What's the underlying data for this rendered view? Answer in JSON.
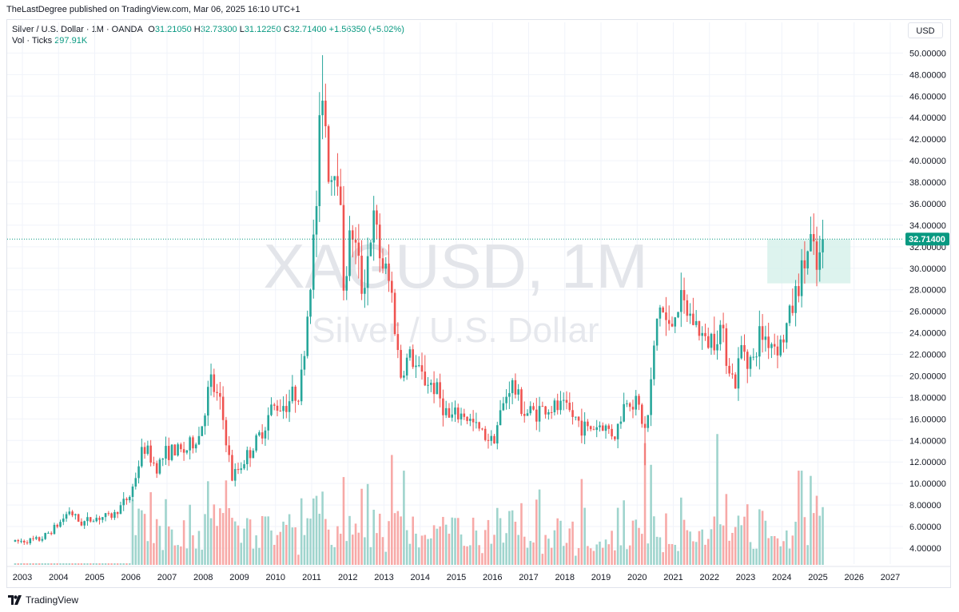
{
  "header": {
    "published": "TheLastDegree published on TradingView.com, Mar 06, 2025 16:10 UTC+1"
  },
  "legend": {
    "symbol": "Silver / U.S. Dollar · 1M · OANDA",
    "o_label": "O",
    "o_value": "31.21050",
    "h_label": "H",
    "h_value": "32.73300",
    "l_label": "L",
    "l_value": "31.12250",
    "c_label": "C",
    "c_value": "32.71400",
    "change": "+1.56350 (+5.02%)",
    "vol_label": "Vol · Ticks",
    "vol_value": "297.91K"
  },
  "currency_button": "USD",
  "watermark": {
    "symbol": "XAGUSD, 1M",
    "description": "Silver / U.S. Dollar"
  },
  "footer": {
    "brand": "TradingView"
  },
  "colors": {
    "up": "#26a69a",
    "down": "#ef5350",
    "vol_up": "#9fd4cd",
    "vol_down": "#f7a9a7",
    "price_line": "#089981",
    "highlight": "#d5f0ea"
  },
  "chart_data": {
    "type": "candlestick",
    "x_axis_labels": [
      "2003",
      "2004",
      "2005",
      "2006",
      "2007",
      "2008",
      "2009",
      "2010",
      "2011",
      "2012",
      "2013",
      "2014",
      "2015",
      "2016",
      "2017",
      "2018",
      "2019",
      "2020",
      "2021",
      "2022",
      "2023",
      "2024",
      "2025",
      "2026",
      "2027"
    ],
    "y_axis_labels": [
      "4.00000",
      "6.00000",
      "8.00000",
      "10.00000",
      "12.00000",
      "14.00000",
      "16.00000",
      "18.00000",
      "20.00000",
      "22.00000",
      "24.00000",
      "26.00000",
      "28.00000",
      "30.00000",
      "32.00000",
      "34.00000",
      "36.00000",
      "38.00000",
      "40.00000",
      "42.00000",
      "44.00000",
      "46.00000",
      "48.00000",
      "50.00000"
    ],
    "ylim": [
      2.0,
      51.5
    ],
    "last_price": 32.714,
    "last_price_label": "32.71400",
    "highlight_zone": {
      "x_start": 2023.6,
      "x_end": 2025.9,
      "y_low": 28.6,
      "y_high": 32.7
    },
    "price_anchors": [
      [
        2002.8,
        4.6
      ],
      [
        2003.5,
        4.8
      ],
      [
        2004.0,
        6.2
      ],
      [
        2004.3,
        7.5
      ],
      [
        2004.6,
        6.3
      ],
      [
        2005.0,
        6.8
      ],
      [
        2005.5,
        7.0
      ],
      [
        2006.0,
        9.0
      ],
      [
        2006.35,
        13.5
      ],
      [
        2006.7,
        11.5
      ],
      [
        2007.0,
        13.0
      ],
      [
        2007.5,
        13.0
      ],
      [
        2007.9,
        14.5
      ],
      [
        2008.2,
        19.5
      ],
      [
        2008.5,
        17.0
      ],
      [
        2008.8,
        10.5
      ],
      [
        2009.0,
        11.5
      ],
      [
        2009.5,
        14.0
      ],
      [
        2009.9,
        17.0
      ],
      [
        2010.3,
        17.5
      ],
      [
        2010.7,
        19.0
      ],
      [
        2010.9,
        26.5
      ],
      [
        2011.1,
        34.0
      ],
      [
        2011.3,
        47.5
      ],
      [
        2011.5,
        38.0
      ],
      [
        2011.7,
        41.0
      ],
      [
        2011.9,
        28.0
      ],
      [
        2012.1,
        34.0
      ],
      [
        2012.4,
        28.0
      ],
      [
        2012.7,
        34.5
      ],
      [
        2012.9,
        31.0
      ],
      [
        2013.2,
        28.0
      ],
      [
        2013.45,
        20.0
      ],
      [
        2013.7,
        22.0
      ],
      [
        2014.0,
        20.0
      ],
      [
        2014.4,
        19.0
      ],
      [
        2014.8,
        16.0
      ],
      [
        2015.2,
        16.5
      ],
      [
        2015.6,
        15.0
      ],
      [
        2016.0,
        14.0
      ],
      [
        2016.5,
        19.5
      ],
      [
        2016.9,
        16.5
      ],
      [
        2017.5,
        17.0
      ],
      [
        2018.0,
        17.0
      ],
      [
        2018.6,
        15.0
      ],
      [
        2019.0,
        15.5
      ],
      [
        2019.4,
        14.5
      ],
      [
        2019.7,
        18.0
      ],
      [
        2020.0,
        17.5
      ],
      [
        2020.25,
        14.5
      ],
      [
        2020.6,
        27.0
      ],
      [
        2020.9,
        24.0
      ],
      [
        2021.1,
        27.0
      ],
      [
        2021.6,
        25.0
      ],
      [
        2021.9,
        23.0
      ],
      [
        2022.3,
        24.5
      ],
      [
        2022.7,
        19.0
      ],
      [
        2022.9,
        23.0
      ],
      [
        2023.2,
        21.0
      ],
      [
        2023.4,
        24.0
      ],
      [
        2023.8,
        23.0
      ],
      [
        2024.0,
        23.0
      ],
      [
        2024.3,
        26.5
      ],
      [
        2024.5,
        29.0
      ],
      [
        2024.8,
        32.5
      ],
      [
        2024.95,
        29.5
      ],
      [
        2025.17,
        32.7
      ]
    ],
    "volume_spikes": [
      [
        2013.2,
        10.5
      ],
      [
        2013.55,
        9.0
      ],
      [
        2022.2,
        12.5
      ],
      [
        2024.5,
        9.0
      ],
      [
        2024.8,
        8.5
      ],
      [
        2011.3,
        7.0
      ],
      [
        2008.8,
        4.5
      ]
    ]
  }
}
